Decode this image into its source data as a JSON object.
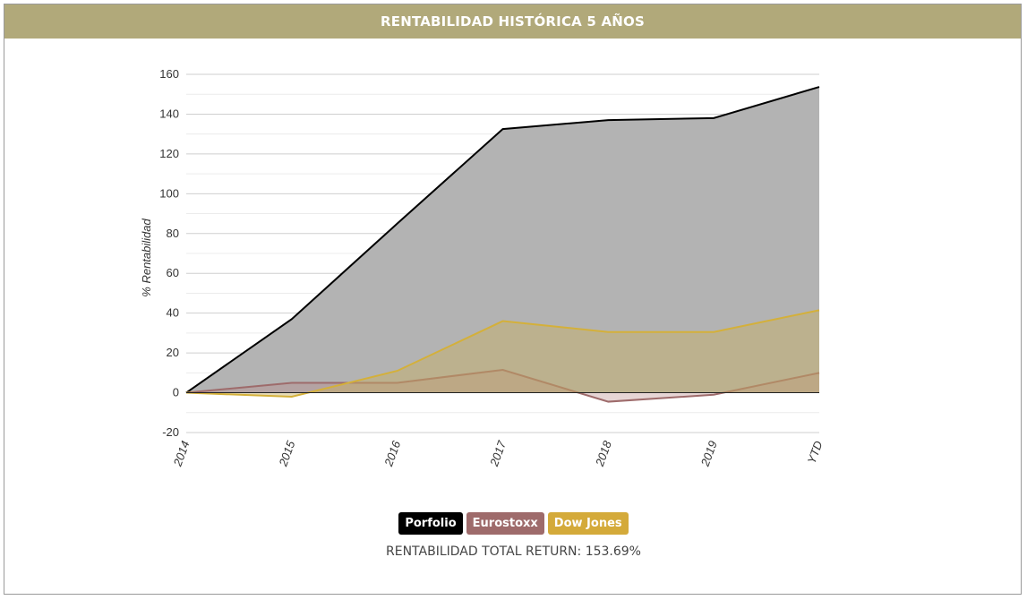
{
  "header": {
    "title": "RENTABILIDAD HISTÓRICA 5 AÑOS"
  },
  "chart_data": {
    "type": "area",
    "title": "",
    "xlabel": "",
    "ylabel": "% Rentabilidad",
    "categories": [
      "2014",
      "2015",
      "2016",
      "2017",
      "2018",
      "2019",
      "YTD"
    ],
    "ylim": [
      -20,
      160
    ],
    "yticks": [
      -20,
      0,
      20,
      40,
      60,
      80,
      100,
      120,
      140,
      160
    ],
    "grid": true,
    "series": [
      {
        "name": "Porfolio",
        "values": [
          0,
          37,
          85,
          132.5,
          137,
          138,
          153.69
        ],
        "line_color": "#000000",
        "fill_color": "#b3b3b3",
        "fill_opacity": 1
      },
      {
        "name": "Eurostoxx",
        "values": [
          0,
          5,
          5,
          11.5,
          -4.5,
          -1,
          10
        ],
        "line_color": "#9e6b6b",
        "fill_color": "#b88888",
        "fill_opacity": 0.35
      },
      {
        "name": "Dow Jones",
        "values": [
          0,
          -2,
          11,
          36,
          30.5,
          30.5,
          41.5
        ],
        "line_color": "#d4b03a",
        "fill_color": "#c8b062",
        "fill_opacity": 0.45
      }
    ]
  },
  "legend": {
    "items": [
      {
        "label": "Porfolio",
        "color": "#000000"
      },
      {
        "label": "Eurostoxx",
        "color": "#9e6b6b"
      },
      {
        "label": "Dow Jones",
        "color": "#d4aa3a"
      }
    ]
  },
  "summary": {
    "total_return_text": "RENTABILIDAD TOTAL RETURN: 153.69%"
  }
}
